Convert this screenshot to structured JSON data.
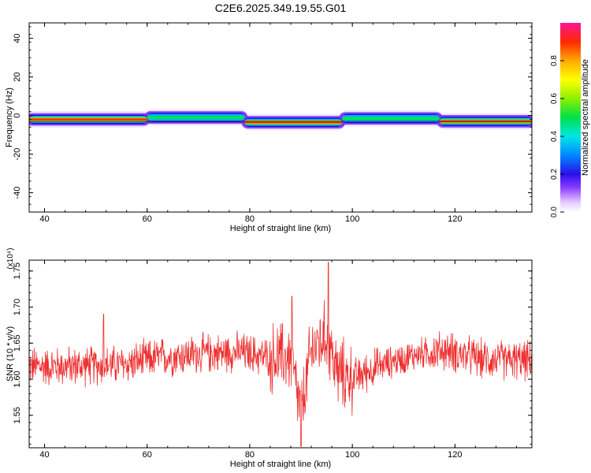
{
  "title": "C2E6.2025.349.19.55.G01",
  "colors": {
    "snr_line": "#ee3030",
    "axes": "#000000",
    "background": "#ffffff"
  },
  "chart_data": [
    {
      "type": "heatmap",
      "name": "spectrogram",
      "xlabel": "Height of straight line (km)",
      "ylabel": "Frequency (Hz)",
      "xlim": [
        37,
        135
      ],
      "ylim": [
        -50,
        48
      ],
      "xticks": [
        40,
        60,
        80,
        100,
        120
      ],
      "yticks": [
        -40,
        -20,
        0,
        20,
        40
      ],
      "colorbar": {
        "label": "Normalized spectral amplitude",
        "range": [
          0,
          1
        ],
        "ticks": [
          "0.0",
          "0.2",
          "0.4",
          "0.6",
          "0.8"
        ]
      },
      "segments": [
        {
          "x0": 37,
          "x1": 60,
          "center_hz": -2.0,
          "amplitude": 0.9
        },
        {
          "x0": 60,
          "x1": 79,
          "center_hz": -1.0,
          "amplitude": 0.5
        },
        {
          "x0": 79,
          "x1": 98,
          "center_hz": -3.5,
          "amplitude": 0.95
        },
        {
          "x0": 98,
          "x1": 117,
          "center_hz": -1.5,
          "amplitude": 0.55
        },
        {
          "x0": 117,
          "x1": 135,
          "center_hz": -3.0,
          "amplitude": 0.9
        }
      ]
    },
    {
      "type": "line",
      "name": "snr",
      "xlabel": "Height of straight line (km)",
      "ylabel": "SNR (10 * v/v)",
      "y_multiplier": "(x10⁴)",
      "xlim": [
        37,
        135
      ],
      "ylim": [
        1.505,
        1.765
      ],
      "xticks": [
        40,
        60,
        80,
        100,
        120
      ],
      "yticks": [
        1.55,
        1.6,
        1.65,
        1.7,
        1.75
      ],
      "baseline": [
        [
          37,
          1.618
        ],
        [
          45,
          1.618
        ],
        [
          55,
          1.62
        ],
        [
          62,
          1.63
        ],
        [
          70,
          1.635
        ],
        [
          78,
          1.638
        ],
        [
          84,
          1.63
        ],
        [
          88,
          1.63
        ],
        [
          90,
          1.55
        ],
        [
          92,
          1.64
        ],
        [
          95,
          1.66
        ],
        [
          97,
          1.61
        ],
        [
          100,
          1.6
        ],
        [
          104,
          1.615
        ],
        [
          108,
          1.625
        ],
        [
          113,
          1.635
        ],
        [
          118,
          1.64
        ],
        [
          125,
          1.628
        ],
        [
          135,
          1.625
        ]
      ],
      "peaks": [
        {
          "x": 90.0,
          "y": 1.507
        },
        {
          "x": 95.3,
          "y": 1.762
        },
        {
          "x": 88.2,
          "y": 1.715
        },
        {
          "x": 51.5,
          "y": 1.69
        }
      ]
    }
  ]
}
